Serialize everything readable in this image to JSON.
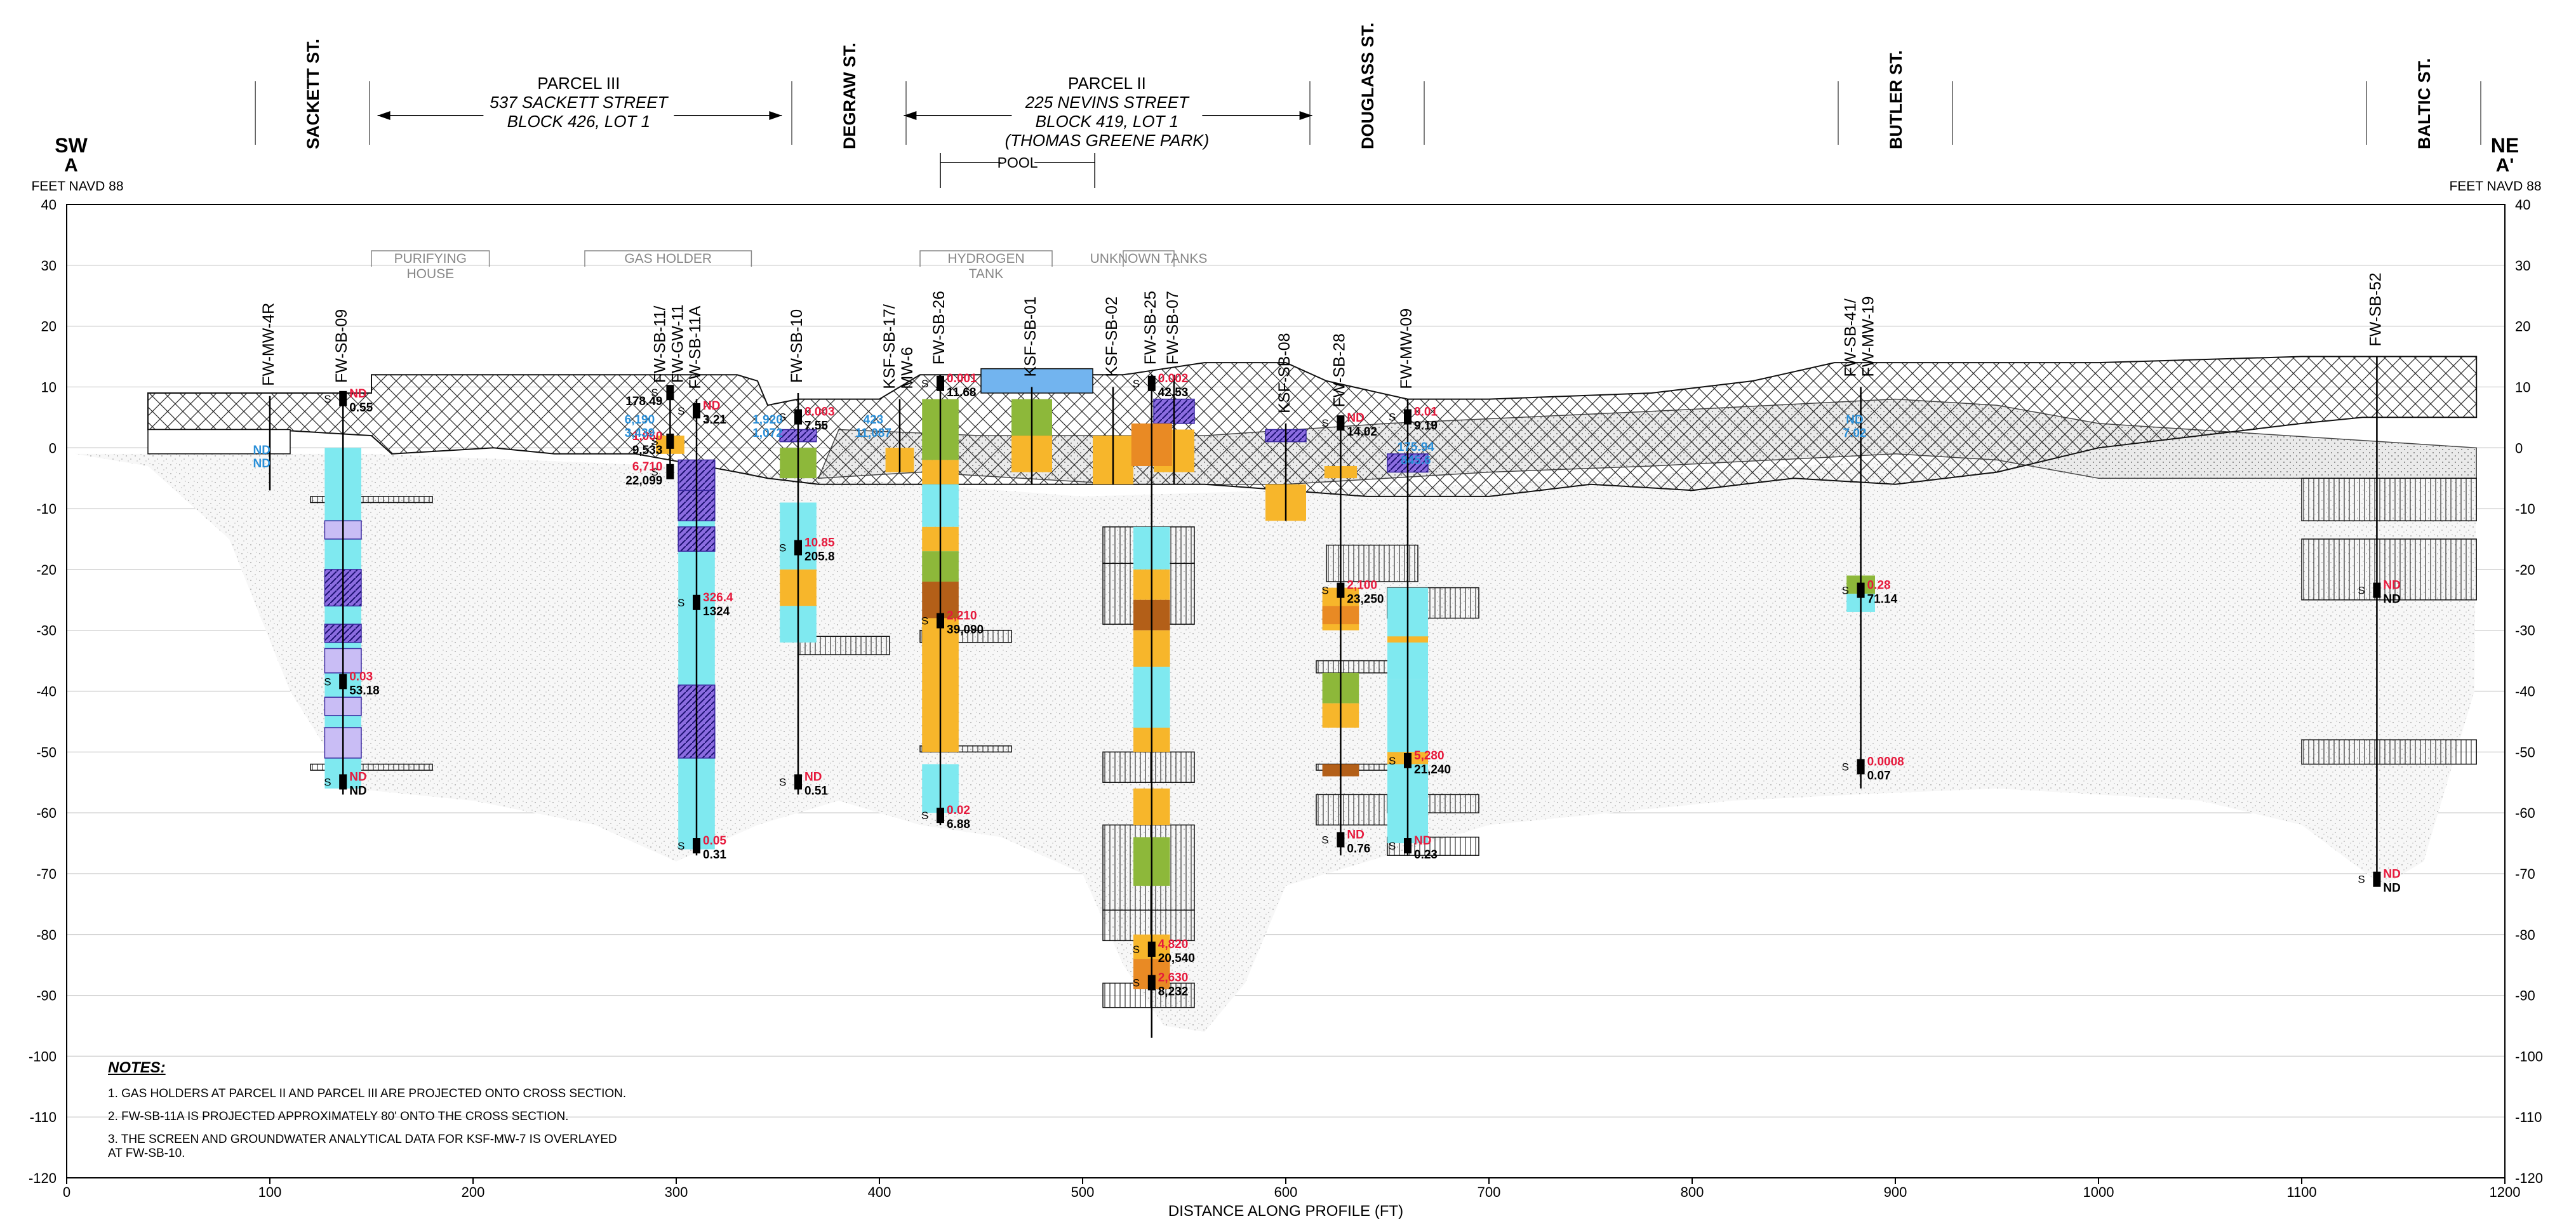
{
  "header": {
    "left_dir": "SW",
    "left_label": "A",
    "right_dir": "NE",
    "right_label": "A'",
    "left_units": "FEET NAVD 88",
    "right_units": "FEET NAVD 88"
  },
  "streets": [
    {
      "name": "SACKETT ST.",
      "x": 121
    },
    {
      "name": "DEGRAW ST.",
      "x": 385
    },
    {
      "name": "DOUGLASS ST.",
      "x": 640
    },
    {
      "name": "BUTLER ST.",
      "x": 900
    },
    {
      "name": "BALTIC ST.",
      "x": 1160
    }
  ],
  "parcels": [
    {
      "lines": [
        "PARCEL III",
        "537 SACKETT STREET",
        "BLOCK 426, LOT 1"
      ],
      "italic_from": 1,
      "x_from": 153,
      "x_to": 352,
      "center": 252
    },
    {
      "lines": [
        "PARCEL II",
        "225 NEVINS STREET",
        "BLOCK 419, LOT 1",
        "(THOMAS GREENE PARK)"
      ],
      "italic_from": 1,
      "x_from": 412,
      "x_to": 613,
      "center": 512
    }
  ],
  "pool": {
    "label": "POOL",
    "x_from": 430,
    "x_to": 506
  },
  "feature_labels": [
    {
      "lines": [
        "PURIFYING",
        "HOUSE"
      ],
      "x_from": 150,
      "x_to": 208
    },
    {
      "lines": [
        "GAS HOLDER"
      ],
      "x_from": 255,
      "x_to": 337
    },
    {
      "lines": [
        "HYDROGEN",
        "TANK"
      ],
      "x_from": 420,
      "x_to": 485
    },
    {
      "lines": [
        "UNKNOWN TANKS"
      ],
      "x_from": 520,
      "x_to": 545
    }
  ],
  "borings": [
    {
      "name": "FW-MW-4R",
      "x": 100,
      "top": 8.5,
      "bottom": -7
    },
    {
      "name": "FW-SB-09",
      "x": 136,
      "top": 9,
      "bottom": -57
    },
    {
      "name": "FW-SB-11/ FW-GW-11",
      "x": 297,
      "top": 9,
      "bottom": -5
    },
    {
      "name": "FW-SB-11A",
      "x": 310,
      "top": 8,
      "bottom": -67
    },
    {
      "name": "FW-SB-10",
      "x": 360,
      "top": 9,
      "bottom": -57
    },
    {
      "name": "KSF-SB-17/ MW-6",
      "x": 410,
      "top": 8,
      "bottom": -4
    },
    {
      "name": "FW-SB-26",
      "x": 430,
      "top": 12,
      "bottom": -62
    },
    {
      "name": "KSF-SB-01",
      "x": 475,
      "top": 10,
      "bottom": -6
    },
    {
      "name": "KSF-SB-02",
      "x": 515,
      "top": 10,
      "bottom": -6
    },
    {
      "name": "FW-SB-25",
      "x": 534,
      "top": 12,
      "bottom": -97
    },
    {
      "name": "FW-SB-07",
      "x": 545,
      "top": 12,
      "bottom": -6
    },
    {
      "name": "KSF-SB-08",
      "x": 600,
      "top": 4,
      "bottom": -12
    },
    {
      "name": "FW-SB-28",
      "x": 627,
      "top": 5,
      "bottom": -67
    },
    {
      "name": "FW-MW-09",
      "x": 660,
      "top": 8,
      "bottom": -67
    },
    {
      "name": "FW-SB-41/ FW-MW-19",
      "x": 883,
      "top": 10,
      "bottom": -56
    },
    {
      "name": "FW-SB-52",
      "x": 1137,
      "top": 15,
      "bottom": -71
    }
  ],
  "results": [
    {
      "x": 136,
      "elev": 8.5,
      "red": "ND",
      "black": "0.55"
    },
    {
      "x": 136,
      "elev": -38,
      "red": "0.03",
      "black": "53.18"
    },
    {
      "x": 136,
      "elev": -54.5,
      "red": "ND",
      "black": "ND"
    },
    {
      "x": 310,
      "elev": 6.5,
      "red": "ND",
      "black": "3.21"
    },
    {
      "x": 297,
      "elev": 9.5,
      "red": "",
      "black": "178.49",
      "side": "left"
    },
    {
      "x": 297,
      "elev": 1.5,
      "red": "1,060",
      "black": "9,533",
      "side": "left"
    },
    {
      "x": 297,
      "elev": -3.5,
      "red": "6,710",
      "black": "22,099",
      "side": "left"
    },
    {
      "x": 310,
      "elev": -25,
      "red": "326.4",
      "black": "1324"
    },
    {
      "x": 310,
      "elev": -65,
      "red": "0.05",
      "black": "0.31"
    },
    {
      "x": 360,
      "elev": 5.5,
      "red": "0.003",
      "black": "7.55"
    },
    {
      "x": 360,
      "elev": -16,
      "red": "10.85",
      "black": "205.8"
    },
    {
      "x": 360,
      "elev": -54.5,
      "red": "ND",
      "black": "0.51"
    },
    {
      "x": 430,
      "elev": 11,
      "red": "0.001",
      "black": "11.68"
    },
    {
      "x": 430,
      "elev": -28,
      "red": "2,210",
      "black": "39,090"
    },
    {
      "x": 430,
      "elev": -60,
      "red": "0.02",
      "black": "6.88"
    },
    {
      "x": 534,
      "elev": 11,
      "red": "0.002",
      "black": "42.53"
    },
    {
      "x": 534,
      "elev": -82,
      "red": "4,820",
      "black": "20,540"
    },
    {
      "x": 534,
      "elev": -87.5,
      "red": "2,630",
      "black": "8,232"
    },
    {
      "x": 627,
      "elev": 4.5,
      "red": "ND",
      "black": "14.02"
    },
    {
      "x": 627,
      "elev": -23,
      "red": "2,100",
      "black": "23,250"
    },
    {
      "x": 627,
      "elev": -64,
      "red": "ND",
      "black": "0.76"
    },
    {
      "x": 660,
      "elev": 5.5,
      "red": "0.01",
      "black": "9.19"
    },
    {
      "x": 660,
      "elev": -51,
      "red": "5,280",
      "black": "21,240"
    },
    {
      "x": 660,
      "elev": -65,
      "red": "ND",
      "black": "0.23"
    },
    {
      "x": 883,
      "elev": -23,
      "red": "0.28",
      "black": "71.14"
    },
    {
      "x": 883,
      "elev": -52,
      "red": "0.0008",
      "black": "0.07"
    },
    {
      "x": 1137,
      "elev": -23,
      "red": "ND",
      "black": "ND"
    },
    {
      "x": 1137,
      "elev": -70.5,
      "red": "ND",
      "black": "ND"
    }
  ],
  "blue_values": [
    {
      "x": 282,
      "elev": 4,
      "lines": [
        "6,190",
        "3,439"
      ]
    },
    {
      "x": 345,
      "elev": 4,
      "lines": [
        "1,920",
        "1,072"
      ]
    },
    {
      "x": 397,
      "elev": 4,
      "lines": [
        "423",
        "11,087"
      ]
    },
    {
      "x": 664,
      "elev": -0.5,
      "lines": [
        "175.94",
        "845.6"
      ]
    },
    {
      "x": 880,
      "elev": 4,
      "lines": [
        "ND",
        "7.02"
      ]
    },
    {
      "x": 96,
      "elev": -1,
      "lines": [
        "ND",
        "ND"
      ]
    }
  ],
  "screen_marker": "S",
  "axis": {
    "y_ticks": [
      40,
      30,
      20,
      10,
      0,
      -10,
      -20,
      -30,
      -40,
      -50,
      -60,
      -70,
      -80,
      -90,
      -100,
      -110,
      -120
    ],
    "x_ticks": [
      0,
      100,
      200,
      300,
      400,
      500,
      600,
      700,
      800,
      900,
      1000,
      1100,
      1200
    ],
    "x_label": "DISTANCE ALONG PROFILE (FT)",
    "x_range": [
      0,
      1200
    ],
    "y_range": [
      -120,
      40
    ]
  },
  "notes": {
    "title": "NOTES:",
    "items": [
      "1.  GAS HOLDERS AT PARCEL II AND PARCEL III ARE PROJECTED ONTO CROSS SECTION.",
      "2.  FW-SB-11A IS PROJECTED APPROXIMATELY 80' ONTO THE CROSS SECTION.",
      "3.  THE SCREEN AND GROUNDWATER ANALYTICAL DATA FOR KSF-MW-7 IS OVERLAYED\n      AT FW-SB-10."
    ]
  },
  "colors": {
    "cyan": "#7fe9f0",
    "orange": "#f7b62b",
    "green": "#8db83a",
    "brown": "#b35f18",
    "dark_orange": "#e98a24",
    "purple": "#8b6ce0",
    "light_purple": "#c9bdf5",
    "red_value": "#e6193c",
    "blue_value": "#2a8fd8",
    "tank_blue": "#72b4ef"
  }
}
